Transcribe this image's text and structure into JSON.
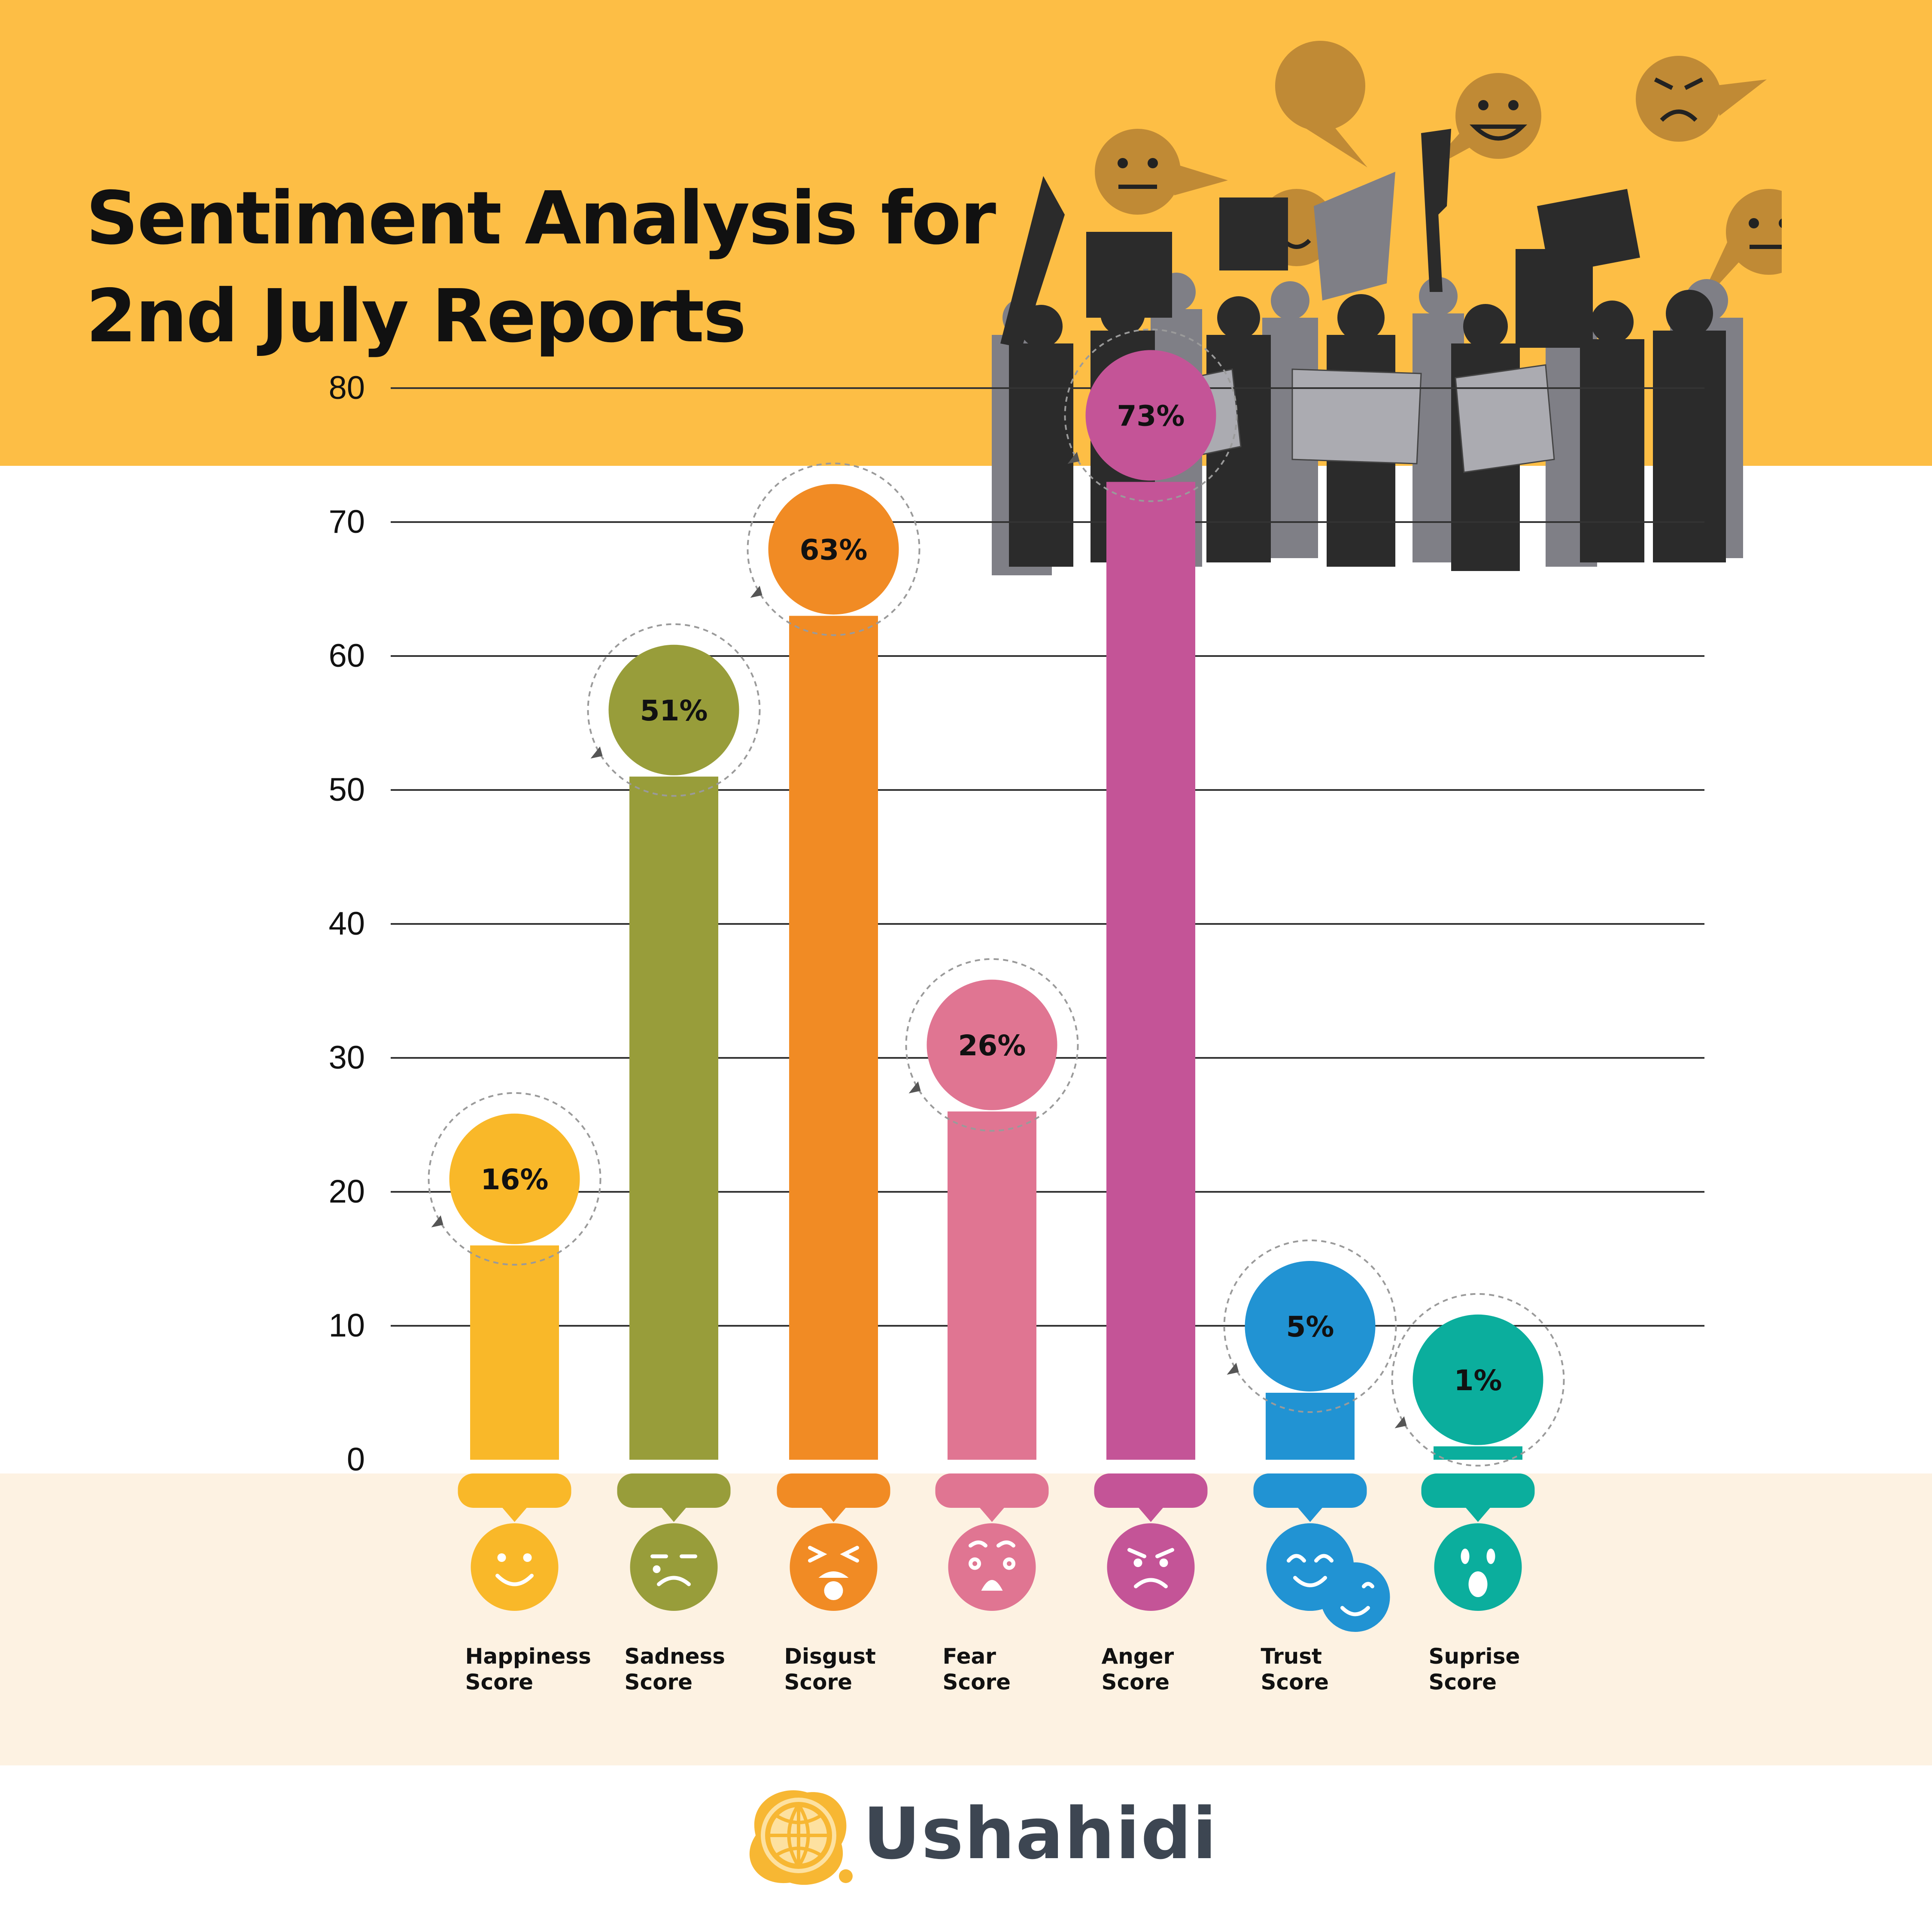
{
  "title": {
    "line1": "Sentiment Analysis for",
    "line2": "2nd July Reports"
  },
  "colors": {
    "banner": "#FDBE45",
    "label_band": "#FDF2E2",
    "gridline": "#333333",
    "axis_text": "#111111",
    "speech_bubble": "#C08A35",
    "crowd_dark": "#2B2B2B",
    "crowd_light": "#7F7F86",
    "sign": "#ABABB1",
    "logo_text": "#3D4652",
    "logo_mark": "#F7B733"
  },
  "chart_data": {
    "type": "bar",
    "title": "Sentiment Analysis for 2nd July Reports",
    "xlabel": "",
    "ylabel": "",
    "ylim": [
      0,
      80
    ],
    "yticks": [
      0,
      10,
      20,
      30,
      40,
      50,
      60,
      70,
      80
    ],
    "grid": true,
    "categories": [
      {
        "label1": "Happiness",
        "label2": "Score",
        "value": 16,
        "display": "16%",
        "color": "#F9B829",
        "icon": "happy-face-icon"
      },
      {
        "label1": "Sadness",
        "label2": "Score",
        "value": 51,
        "display": "51%",
        "color": "#989D3A",
        "icon": "sad-face-icon"
      },
      {
        "label1": "Disgust",
        "label2": "Score",
        "value": 63,
        "display": "63%",
        "color": "#F18B24",
        "icon": "disgust-face-icon"
      },
      {
        "label1": "Fear",
        "label2": "Score",
        "value": 26,
        "display": "26%",
        "color": "#E07592",
        "icon": "fear-face-icon"
      },
      {
        "label1": "Anger",
        "label2": "Score",
        "value": 73,
        "display": "73%",
        "color": "#C45497",
        "icon": "angry-face-icon"
      },
      {
        "label1": "Trust",
        "label2": "Score",
        "value": 5,
        "display": "5%",
        "color": "#2193D3",
        "icon": "trust-faces-icon"
      },
      {
        "label1": "Suprise",
        "label2": "Score",
        "value": 1,
        "display": "1%",
        "color": "#0BAE9D",
        "icon": "surprise-face-icon"
      }
    ]
  },
  "footer": {
    "brand": "Ushahidi",
    "logo_icon": "globe-logo-icon"
  }
}
